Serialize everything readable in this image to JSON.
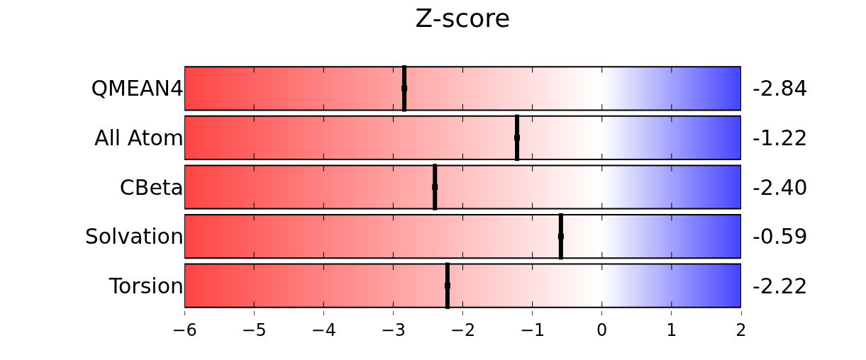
{
  "chart_data": {
    "type": "scatter",
    "title": "Z-score",
    "categories": [
      "QMEAN4",
      "All Atom",
      "CBeta",
      "Solvation",
      "Torsion"
    ],
    "values": [
      -2.84,
      -1.22,
      -2.4,
      -0.59,
      -2.22
    ],
    "value_labels": [
      "-2.84",
      "-1.22",
      "-2.40",
      "-0.59",
      "-2.22"
    ],
    "color": "#000000",
    "xlim": [
      -6,
      2
    ],
    "orientation": "horizontal",
    "xticks": [
      {
        "value": -6,
        "label": "−6"
      },
      {
        "value": -5,
        "label": "−5"
      },
      {
        "value": -4,
        "label": "−4"
      },
      {
        "value": -3,
        "label": "−3"
      },
      {
        "value": -2,
        "label": "−2"
      },
      {
        "value": -1,
        "label": "−1"
      },
      {
        "value": 0,
        "label": "0"
      },
      {
        "value": 1,
        "label": "1"
      },
      {
        "value": 2,
        "label": "2"
      }
    ],
    "grid": false
  }
}
